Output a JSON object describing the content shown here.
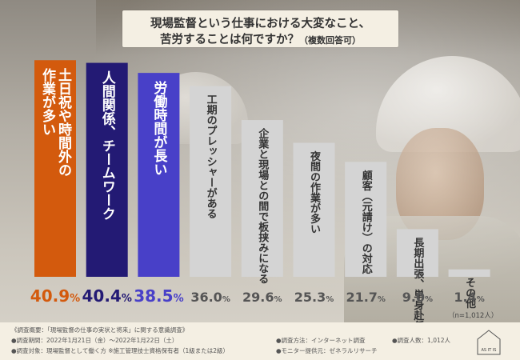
{
  "title": {
    "line1": "現場監督という仕事における大変なこと、",
    "line2_main": "苦労することは何ですか？",
    "line2_note": "（複数回答可）"
  },
  "chart_data": {
    "type": "bar",
    "categories": [
      "土日祝や時間外の作業が多い",
      "人間関係、チームワーク",
      "労働時間が長い",
      "工期のプレッシャーがある",
      "企業と現場との間で板挟みになる",
      "夜間の作業が多い",
      "顧客（元請け）の対応",
      "長期出張、単身赴任がある",
      "その他"
    ],
    "values": [
      40.9,
      40.4,
      38.5,
      36.0,
      29.6,
      25.3,
      21.7,
      9.0,
      1.4
    ],
    "value_labels": [
      {
        "num": "40.9",
        "pct": "%"
      },
      {
        "num": "40.4",
        "pct": "%"
      },
      {
        "num": "38.5",
        "pct": "%"
      },
      {
        "num": "36.0",
        "pct": "%"
      },
      {
        "num": "29.6",
        "pct": "%"
      },
      {
        "num": "25.3",
        "pct": "%"
      },
      {
        "num": "21.7",
        "pct": "%"
      },
      {
        "num": "9.0",
        "pct": "%"
      },
      {
        "num": "1.4",
        "pct": "%"
      }
    ],
    "bar_label_lines": [
      [
        "土日祝や時間外の",
        "作業が多い"
      ],
      [
        "人間関係、チームワーク"
      ],
      [
        "労働時間が長い"
      ],
      [
        "工期のプレッシャーがある"
      ],
      [
        "企業と現場との間で板挟みになる"
      ],
      [
        "夜間の作業が多い"
      ],
      [
        "顧客（元請け）の対応"
      ],
      [
        "長期出張、単身赴任がある"
      ],
      [
        "その他"
      ]
    ],
    "bar_colors": [
      "#d35a0d",
      "#231a74",
      "#4840c8",
      "#d4d4d4",
      "#d4d4d4",
      "#d4d4d4",
      "#d4d4d4",
      "#d4d4d4",
      "#d4d4d4"
    ],
    "label_colors": [
      "#ffffff",
      "#ffffff",
      "#ffffff",
      "#333333",
      "#333333",
      "#333333",
      "#333333",
      "#333333",
      "#333333"
    ],
    "value_colors": [
      "#d35a0d",
      "#231a74",
      "#4840c8",
      "#555555",
      "#555555",
      "#555555",
      "#555555",
      "#555555",
      "#555555"
    ],
    "ylim": [
      0,
      45
    ],
    "sample_size": "（n=1,012人）"
  },
  "footer": {
    "overview": "《調査概要：「現場監督の仕事の実状と将来」に関する意識調査》",
    "period": "●調査期間：2022年1月21日（金）～2022年1月22日（土）",
    "target": "●調査対象：現場監督として働く方 ※施工管理技士資格保有者（1級または2級）",
    "method": "●調査方法：インターネット調査",
    "count": "●調査人数：1,012人",
    "provider": "●モニター提供元：ゼネラルリサーチ",
    "logo_text": "AS IT IS"
  },
  "colors": {
    "title_bg": "#f4efe3",
    "footer_bg": "#f4efe3",
    "accent_orange": "#d35a0d",
    "accent_navy": "#231a74",
    "accent_blue": "#4840c8"
  }
}
